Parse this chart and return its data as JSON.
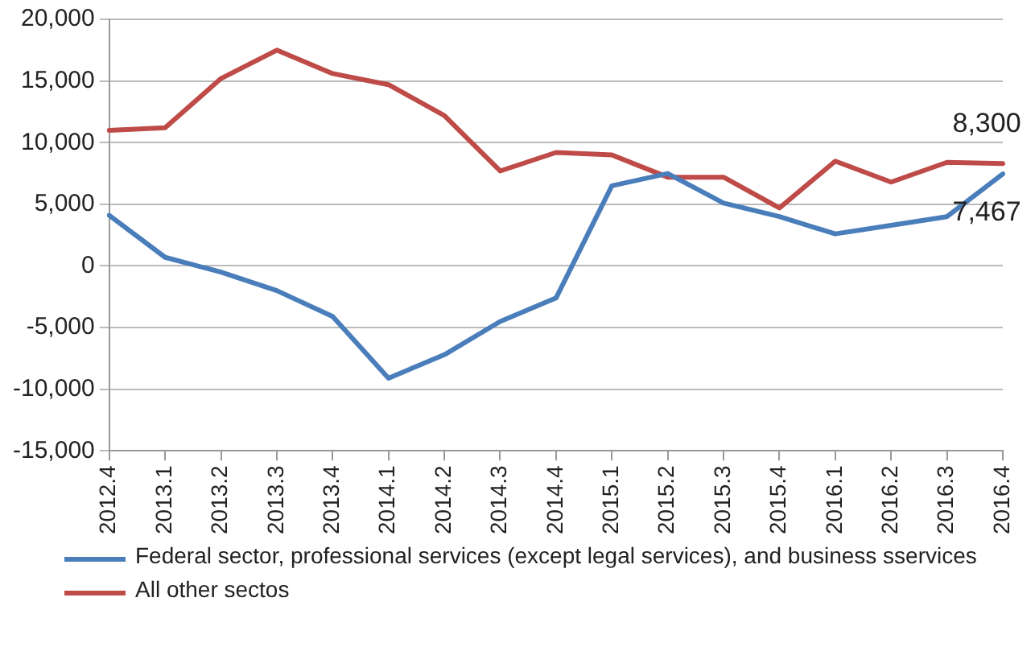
{
  "chart_data": {
    "type": "line",
    "categories": [
      "2012.4",
      "2013.1",
      "2013.2",
      "2013.3",
      "2013.4",
      "2014.1",
      "2014.2",
      "2014.3",
      "2014.4",
      "2015.1",
      "2015.2",
      "2015.3",
      "2015.4",
      "2016.1",
      "2016.2",
      "2016.3",
      "2016.4"
    ],
    "series": [
      {
        "name": "Federal sector, professional services (except legal services), and business sservices",
        "color": "#4a7ebb",
        "values": [
          4100,
          700,
          -500,
          -2000,
          -4100,
          -9100,
          -7200,
          -4500,
          -2600,
          6500,
          7500,
          5100,
          4000,
          2600,
          3300,
          4000,
          7467
        ],
        "value_labels": [
          null,
          null,
          null,
          null,
          null,
          null,
          null,
          null,
          null,
          null,
          null,
          null,
          null,
          null,
          null,
          null,
          "7,467"
        ]
      },
      {
        "name": "All other sectos",
        "color": "#be4b48",
        "values": [
          11000,
          11200,
          15200,
          17500,
          15600,
          14700,
          12200,
          7700,
          9200,
          9000,
          7200,
          7200,
          4700,
          8500,
          6800,
          8400,
          8300
        ],
        "value_labels": [
          null,
          null,
          null,
          null,
          null,
          null,
          null,
          null,
          null,
          null,
          null,
          null,
          null,
          null,
          null,
          null,
          "8,300"
        ]
      }
    ],
    "ylim": [
      -15000,
      20000
    ],
    "yticks": [
      {
        "value": -15000,
        "label": "-15,000"
      },
      {
        "value": -10000,
        "label": "-10,000"
      },
      {
        "value": -5000,
        "label": "-5,000"
      },
      0,
      {
        "value": 5000,
        "label": "5,000"
      },
      {
        "value": 10000,
        "label": "10,000"
      },
      {
        "value": 15000,
        "label": "15,000"
      },
      {
        "value": 20000,
        "label": "20,000"
      }
    ],
    "grid": "y",
    "legend": "bottom",
    "marker": "none",
    "line_style": "solid"
  }
}
